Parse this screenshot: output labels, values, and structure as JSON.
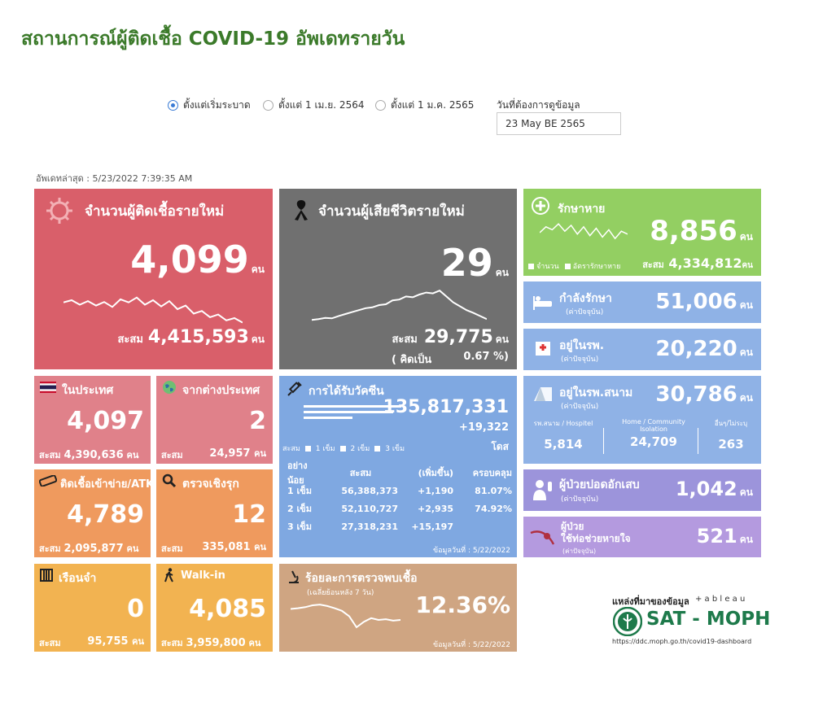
{
  "header": {
    "title": "สถานการณ์ผู้ติดเชื้อ COVID-19 อัพเดทรายวัน"
  },
  "filters": {
    "options": [
      {
        "label": "ตั้งแต่เริ่มระบาด",
        "selected": true
      },
      {
        "label": "ตั้งแต่ 1 เม.ย. 2564",
        "selected": false
      },
      {
        "label": "ตั้งแต่ 1 ม.ค. 2565",
        "selected": false
      }
    ],
    "date_label": "วันที่ต้องการดูข้อมูล",
    "date_value": "23 May BE 2565"
  },
  "updated": "อัพเดทล่าสุด : 5/23/2022 7:39:35 AM",
  "unit": "คน",
  "accum_label": "สะสม",
  "new_cases": {
    "label": "จำนวนผู้ติดเชื้อรายใหม่",
    "value": "4,099",
    "accum": "4,415,593",
    "trend": [
      0.55,
      0.6,
      0.5,
      0.58,
      0.48,
      0.56,
      0.45,
      0.62,
      0.55,
      0.66,
      0.5,
      0.6,
      0.46,
      0.58,
      0.4,
      0.48,
      0.3,
      0.36,
      0.22,
      0.28,
      0.15,
      0.2,
      0.1
    ]
  },
  "deaths": {
    "label": "จำนวนผู้เสียชีวิตรายใหม่",
    "value": "29",
    "accum": "29,775",
    "ratio_label": "( คิดเป็น",
    "ratio": "0.67 %)",
    "trend": [
      0.1,
      0.12,
      0.15,
      0.14,
      0.2,
      0.25,
      0.3,
      0.35,
      0.4,
      0.42,
      0.48,
      0.5,
      0.6,
      0.62,
      0.7,
      0.68,
      0.75,
      0.8,
      0.78,
      0.85,
      0.7,
      0.55,
      0.45,
      0.35,
      0.28,
      0.2,
      0.12
    ]
  },
  "domestic": {
    "label": "ในประเทศ",
    "value": "4,097",
    "accum": "4,390,636"
  },
  "abroad": {
    "label": "จากต่างประเทศ",
    "value": "2",
    "accum": "24,957"
  },
  "atk": {
    "label": "ติดเชื้อเข้าข่าย/ATK",
    "value": "4,789",
    "accum": "2,095,877"
  },
  "proactive": {
    "label": "ตรวจเชิงรุก",
    "value": "12",
    "accum": "335,081"
  },
  "prison": {
    "label": "เรือนจำ",
    "value": "0",
    "accum": "95,755"
  },
  "walkin": {
    "label": "Walk-in",
    "value": "4,085",
    "accum": "3,959,800"
  },
  "vaccine": {
    "label": "การได้รับวัคซีน",
    "total": "135,817,331",
    "daily": "+19,322",
    "dose_unit": "โดส",
    "legend": [
      "สะสม",
      "1 เข็ม",
      "2 เข็ม",
      "3 เข็ม"
    ],
    "headers": [
      "อย่างน้อย",
      "สะสม",
      "(เพิ่มขึ้น)",
      "ครอบคลุม"
    ],
    "rows": [
      {
        "dose": "1 เข็ม",
        "accum": "56,388,373",
        "increase": "+1,190",
        "coverage": "81.07%"
      },
      {
        "dose": "2 เข็ม",
        "accum": "52,110,727",
        "increase": "+2,935",
        "coverage": "74.92%"
      },
      {
        "dose": "3 เข็ม",
        "accum": "27,318,231",
        "increase": "+15,197",
        "coverage": ""
      }
    ],
    "date_note": "ข้อมูลวันที่ : 5/22/2022"
  },
  "positivity": {
    "label": "ร้อยละการตรวจพบเชื้อ",
    "sublabel": "(เฉลี่ยย้อนหลัง 7 วัน)",
    "value": "12.36%",
    "date_note": "ข้อมูลวันที่ : 5/22/2022",
    "trend": [
      0.7,
      0.72,
      0.75,
      0.8,
      0.82,
      0.78,
      0.72,
      0.65,
      0.5,
      0.2,
      0.35,
      0.45,
      0.4,
      0.42,
      0.38,
      0.4
    ]
  },
  "recovered": {
    "label": "รักษาหาย",
    "value": "8,856",
    "accum": "4,334,812",
    "legend": [
      "จำนวน",
      "อัตรารักษาหาย"
    ],
    "trend": [
      0.5,
      0.7,
      0.6,
      0.8,
      0.55,
      0.75,
      0.45,
      0.7,
      0.4,
      0.65,
      0.35,
      0.6,
      0.3,
      0.55,
      0.45
    ]
  },
  "treating": {
    "label": "กำลังรักษา",
    "sublabel": "(ค่าปัจจุบัน)",
    "value": "51,006"
  },
  "hospital": {
    "label": "อยู่ในรพ.",
    "sublabel": "(ค่าปัจจุบัน)",
    "value": "20,220"
  },
  "field_hospital": {
    "label": "อยู่ในรพ.สนาม",
    "sublabel": "(ค่าปัจจุบัน)",
    "value": "30,786",
    "cols": [
      {
        "label": "รพ.สนาม / Hospitel",
        "value": "5,814"
      },
      {
        "label": "Home / Community Isolation",
        "value": "24,709"
      },
      {
        "label": "อื่นๆ/ไม่ระบุ",
        "value": "263"
      }
    ]
  },
  "pneumonia": {
    "label": "ผู้ป่วยปอดอักเสบ",
    "sublabel": "(ค่าปัจจุบัน)",
    "value": "1,042"
  },
  "ventilator": {
    "label1": "ผู้ป่วย",
    "label2": "ใช้ท่อช่วยหายใจ",
    "sublabel": "(ค่าปัจจุบัน)",
    "value": "521"
  },
  "source": {
    "label": "แหล่งที่มาของข้อมูล",
    "tableau": "+ a b l e a u",
    "org": "SAT - MOPH",
    "url": "https://ddc.moph.go.th/covid19-dashboard"
  }
}
